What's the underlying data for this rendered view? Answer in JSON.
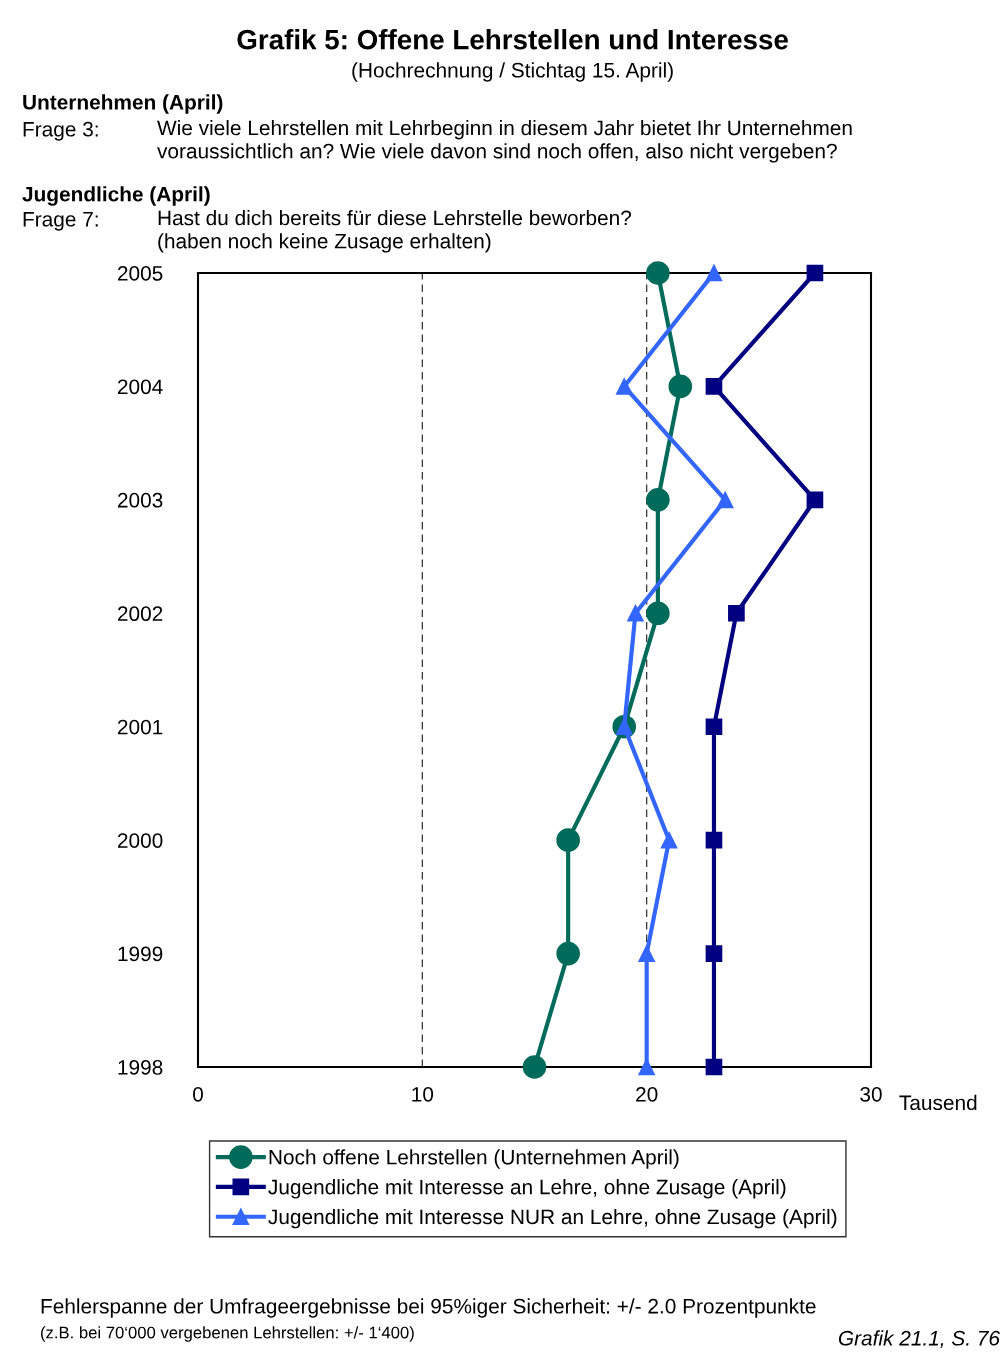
{
  "chart_data": {
    "type": "line",
    "orientation": "horizontal",
    "title": "Grafik 5: Offene Lehrstellen und Interesse",
    "subtitle": "(Hochrechnung / Stichtag 15. April)",
    "annotations": [
      "Unternehmen (April)",
      "Frage 3:",
      "Wie viele Lehrstellen mit Lehrbeginn in diesem Jahr bietet Ihr Unternehmen\nvoraussichtlich an? Wie viele davon sind noch offen, also nicht vergeben?",
      "Jugendliche (April)",
      "Frage 7:",
      "Hast du dich bereits für diese Lehrstelle beworben?\n(haben noch keine Zusage erhalten)",
      "Fehlerspanne der Umfrageergebnisse bei 95%iger Sicherheit: +/- 2.0 Prozentpunkte",
      "(z.B. bei 70‘000 vergebenen Lehrstellen: +/- 1‘400)",
      "Grafik 21.1, S. 76"
    ],
    "xlabel": "Tausend",
    "categories": [
      "2005",
      "2004",
      "2003",
      "2002",
      "2001",
      "2000",
      "1999",
      "1998"
    ],
    "series": [
      {
        "name": "Noch offene Lehrstellen (Unternehmen April)",
        "color": "#006b5a",
        "marker": "circle",
        "values": [
          20.5,
          21.5,
          20.5,
          20.5,
          19.0,
          16.5,
          16.5,
          15.0
        ]
      },
      {
        "name": "Jugendliche mit Interesse an Lehre, ohne Zusage (April)",
        "color": "#000080",
        "marker": "square",
        "values": [
          27.5,
          23.0,
          27.5,
          24.0,
          23.0,
          23.0,
          23.0,
          23.0
        ]
      },
      {
        "name": "Jugendliche mit Interesse NUR an Lehre, ohne Zusage (April)",
        "color": "#3366ff",
        "marker": "triangle",
        "values": [
          23.0,
          19.0,
          23.5,
          19.5,
          19.0,
          21.0,
          20.0,
          20.0
        ]
      }
    ],
    "xlim": [
      0,
      30
    ],
    "xticks": [
      0,
      10,
      20,
      30
    ],
    "grid": "x",
    "legend": "bottom",
    "line_style": "solid"
  }
}
